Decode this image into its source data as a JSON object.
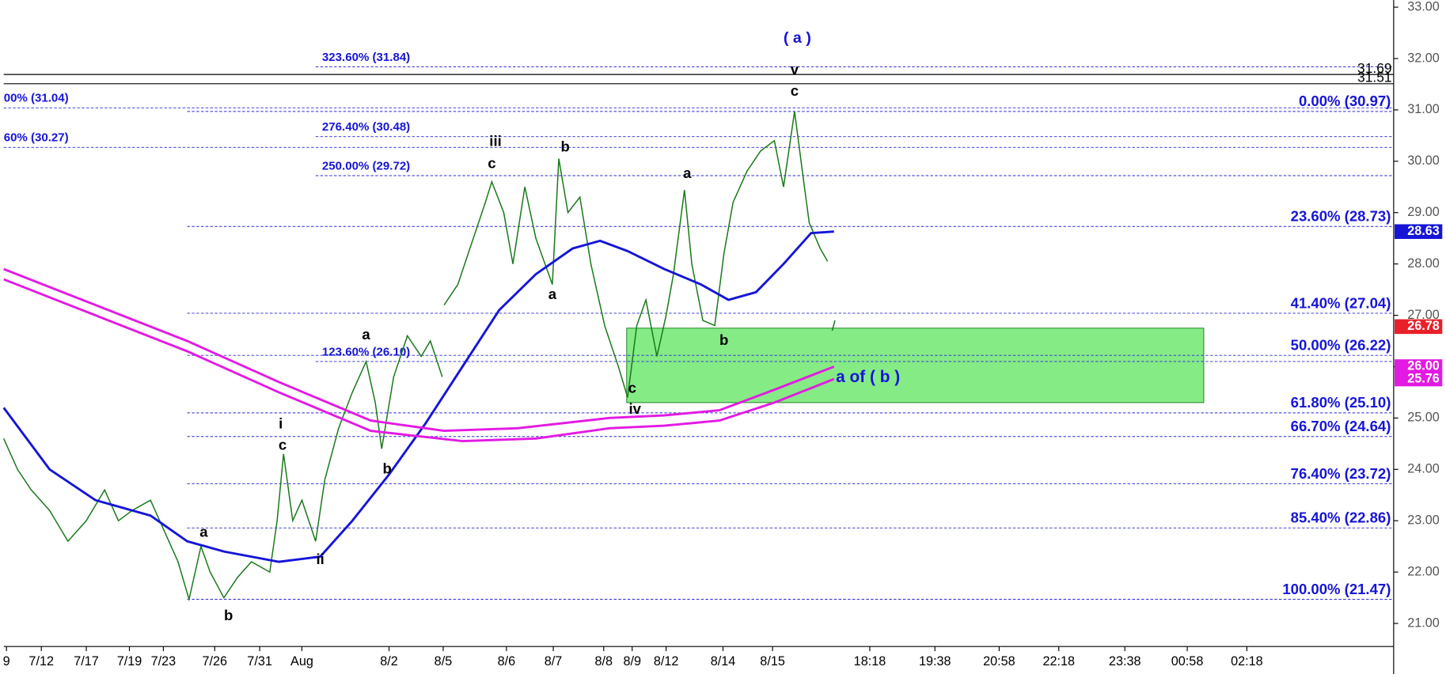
{
  "chart_data": {
    "type": "line",
    "xlim": [
      0,
      1515
    ],
    "ylim": [
      20.55,
      33.14
    ],
    "yticks": [
      {
        "value": 21,
        "label": "21.00"
      },
      {
        "value": 22,
        "label": "22.00"
      },
      {
        "value": 23,
        "label": "23.00"
      },
      {
        "value": 24,
        "label": "24.00"
      },
      {
        "value": 25,
        "label": "25.00"
      },
      {
        "value": 26,
        "label": "26.00"
      },
      {
        "value": 27,
        "label": "27.00"
      },
      {
        "value": 28,
        "label": "28.00"
      },
      {
        "value": 29,
        "label": "29.00"
      },
      {
        "value": 30,
        "label": "30.00"
      },
      {
        "value": 31,
        "label": "31.00"
      },
      {
        "value": 32,
        "label": "32.00"
      },
      {
        "value": 33,
        "label": "33.00"
      }
    ],
    "xticks": [
      {
        "value": 3,
        "label": "9"
      },
      {
        "value": 41,
        "label": "7/12"
      },
      {
        "value": 90,
        "label": "7/17"
      },
      {
        "value": 137,
        "label": "7/19"
      },
      {
        "value": 174,
        "label": "7/23"
      },
      {
        "value": 230,
        "label": "7/26"
      },
      {
        "value": 279,
        "label": "7/31"
      },
      {
        "value": 325,
        "label": "Aug"
      },
      {
        "value": 420,
        "label": "8/2"
      },
      {
        "value": 479,
        "label": "8/5"
      },
      {
        "value": 548,
        "label": "8/6"
      },
      {
        "value": 599,
        "label": "8/7"
      },
      {
        "value": 654,
        "label": "8/8"
      },
      {
        "value": 685,
        "label": "8/9"
      },
      {
        "value": 722,
        "label": "8/12"
      },
      {
        "value": 784,
        "label": "8/14"
      },
      {
        "value": 838,
        "label": "8/15"
      },
      {
        "value": 944,
        "label": "18:18"
      },
      {
        "value": 1015,
        "label": "19:38"
      },
      {
        "value": 1085,
        "label": "20:58"
      },
      {
        "value": 1150,
        "label": "22:18"
      },
      {
        "value": 1222,
        "label": "23:38"
      },
      {
        "value": 1290,
        "label": "00:58"
      },
      {
        "value": 1355,
        "label": "02:18"
      }
    ],
    "series": [
      {
        "color": "#1a7a1a",
        "x": [
          0,
          15,
          30,
          50,
          70,
          90,
          110,
          125,
          140,
          160,
          175,
          190,
          202,
          215,
          225,
          240,
          255,
          270,
          290,
          298,
          305,
          315,
          325,
          340,
          350,
          365,
          380,
          395,
          405,
          412,
          425,
          440,
          455,
          465,
          478,
          479,
          480,
          495,
          510,
          525,
          532,
          545,
          555,
          568,
          580,
          598,
          605,
          615,
          628,
          640,
          655,
          670,
          680,
          690,
          700,
          712,
          722,
          730,
          742,
          750,
          762,
          775,
          785,
          795,
          810,
          825,
          840,
          850,
          862,
          872,
          878,
          890,
          898,
          900,
          903,
          906
        ],
        "values": [
          24.6,
          24.0,
          23.6,
          23.2,
          22.6,
          23.0,
          23.6,
          23.0,
          23.2,
          23.4,
          22.8,
          22.2,
          21.47,
          22.5,
          22.0,
          21.5,
          21.9,
          22.2,
          22.0,
          23.0,
          24.3,
          23.0,
          23.4,
          22.6,
          23.8,
          24.8,
          25.5,
          26.1,
          25.3,
          24.4,
          25.8,
          26.6,
          26.2,
          26.5,
          25.8,
          null,
          27.2,
          27.6,
          28.4,
          29.2,
          29.6,
          29.0,
          28.0,
          29.5,
          28.5,
          27.6,
          30.05,
          29.0,
          29.3,
          28.0,
          26.8,
          26.0,
          25.4,
          26.8,
          27.3,
          26.2,
          27.0,
          27.8,
          29.44,
          28.0,
          26.9,
          26.8,
          28.2,
          29.2,
          29.8,
          30.2,
          30.4,
          29.5,
          30.97,
          29.6,
          28.8,
          28.3,
          28.05,
          null,
          26.7,
          26.9
        ]
      },
      {
        "color": "#1515d8",
        "x": [
          0,
          50,
          100,
          160,
          200,
          240,
          300,
          345,
          380,
          420,
          460,
          500,
          540,
          580,
          620,
          650,
          680,
          720,
          760,
          790,
          820,
          850,
          880,
          905
        ],
        "values": [
          25.2,
          24.0,
          23.4,
          23.1,
          22.6,
          22.4,
          22.2,
          22.3,
          23.0,
          23.9,
          24.9,
          26.0,
          27.1,
          27.8,
          28.3,
          28.45,
          28.25,
          27.9,
          27.6,
          27.3,
          27.45,
          28.0,
          28.6,
          28.63
        ]
      },
      {
        "color": "#e31ae3",
        "x": [
          0,
          100,
          200,
          300,
          400,
          480,
          560,
          660,
          720,
          780,
          840,
          905
        ],
        "values": [
          27.9,
          27.2,
          26.5,
          25.7,
          24.95,
          24.75,
          24.8,
          25.0,
          25.05,
          25.15,
          25.55,
          26.0
        ]
      },
      {
        "color": "#e31ae3",
        "x": [
          0,
          100,
          200,
          300,
          400,
          500,
          580,
          660,
          720,
          780,
          840,
          905
        ],
        "values": [
          27.7,
          27.0,
          26.3,
          25.5,
          24.75,
          24.55,
          24.6,
          24.8,
          24.85,
          24.95,
          25.3,
          25.76
        ]
      }
    ],
    "fib_right": [
      {
        "value": 30.97,
        "label": "0.00% (30.97)"
      },
      {
        "value": 28.73,
        "label": "23.60% (28.73)"
      },
      {
        "value": 27.04,
        "label": "41.40% (27.04)"
      },
      {
        "value": 26.22,
        "label": "50.00% (26.22)"
      },
      {
        "value": 25.1,
        "label": "61.80% (25.10)"
      },
      {
        "value": 24.64,
        "label": "66.70% (24.64)"
      },
      {
        "value": 23.72,
        "label": "76.40% (23.72)"
      },
      {
        "value": 22.86,
        "label": "85.40% (22.86)"
      },
      {
        "value": 21.47,
        "label": "100.00% (21.47)"
      }
    ],
    "fib_left": [
      {
        "value": 31.84,
        "label": "323.60% (31.84)"
      },
      {
        "value": 30.48,
        "label": "276.40% (30.48)"
      },
      {
        "value": 29.72,
        "label": "250.00% (29.72)"
      },
      {
        "value": 26.1,
        "label": "123.60% (26.10)"
      }
    ],
    "fib_edge": [
      {
        "value": 31.04,
        "label": "00% (31.04)"
      },
      {
        "value": 30.27,
        "label": "60% (30.27)"
      }
    ],
    "hlines": [
      {
        "value": 31.69,
        "label": "31.69"
      },
      {
        "value": 31.51,
        "label": "31.51"
      }
    ],
    "zone": {
      "ylim": [
        25.3,
        26.75
      ],
      "xlim": [
        679,
        1308
      ],
      "color": "#33dd33"
    },
    "price_tags": [
      {
        "value": 28.63,
        "label": "28.63",
        "color": "#1515d8"
      },
      {
        "value": 26.78,
        "label": "26.78",
        "color": "#e8202a"
      },
      {
        "value": 26.0,
        "label": "26.00",
        "color": "#e31ae3"
      },
      {
        "value": 25.76,
        "label": "25.76",
        "color": "#e31ae3"
      }
    ],
    "annotations": [
      "( a )",
      "v",
      "c",
      "iii",
      "c",
      "b",
      "a",
      "a",
      "b",
      "c",
      "iv",
      "a",
      "b",
      "i",
      "c",
      "ii",
      "a",
      "b",
      "a of ( b )"
    ]
  }
}
